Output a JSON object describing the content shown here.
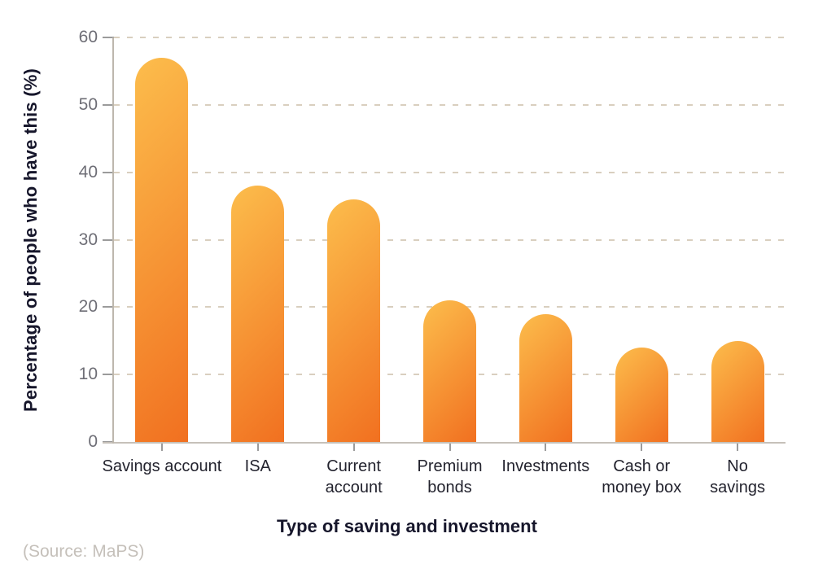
{
  "figure": {
    "y_axis_title": "Percentage of people who have this (%)",
    "x_axis_title": "Type of saving and investment",
    "source_caption": "(Source: MaPS)"
  },
  "chart_data": {
    "type": "bar",
    "title": "",
    "categories": [
      "Savings account",
      "ISA",
      "Current account",
      "Premium bonds",
      "Investments",
      "Cash or money box",
      "No savings"
    ],
    "values": [
      57,
      38,
      36,
      21,
      19,
      14,
      15
    ],
    "unit": "%",
    "xlabel": "Type of saving and investment",
    "ylabel": "Percentage of people who have this (%)",
    "ylim": [
      0,
      60
    ],
    "yticks": [
      0,
      10,
      20,
      30,
      40,
      50,
      60
    ],
    "grid": "horizontal-dashed",
    "legend_position": "none",
    "source": "(Source: MaPS)",
    "tick_label_lines": [
      [
        "Savings account"
      ],
      [
        "ISA"
      ],
      [
        "Current",
        "account"
      ],
      [
        "Premium",
        "bonds"
      ],
      [
        "Investments"
      ],
      [
        "Cash or",
        "money box"
      ],
      [
        "No",
        "savings"
      ]
    ]
  },
  "colors": {
    "background": "#FFFFFF",
    "bar_gradient_start": "#FCBD4C",
    "bar_gradient_end": "#F17020",
    "gridline": "#D9CFBF",
    "axis_line": "#C2BCB2",
    "tick_mark": "#9B9B9B",
    "y_tick_label": "#6E6E76",
    "category_label": "#23232E",
    "axis_title": "#16162B",
    "source_text": "#C5C0BA"
  }
}
